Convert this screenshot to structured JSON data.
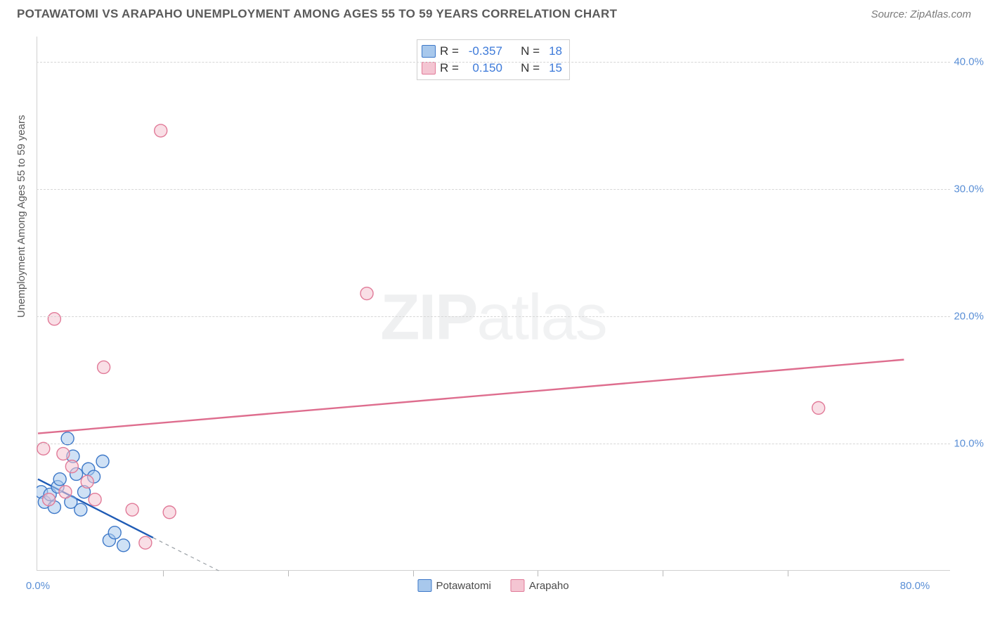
{
  "header": {
    "title": "POTAWATOMI VS ARAPAHO UNEMPLOYMENT AMONG AGES 55 TO 59 YEARS CORRELATION CHART",
    "source": "Source: ZipAtlas.com"
  },
  "chart": {
    "type": "scatter",
    "ylabel": "Unemployment Among Ages 55 to 59 years",
    "background_color": "#ffffff",
    "grid_color": "#d6d6d6",
    "axis_color": "#d0d0d0",
    "label_color": "#5a8fd6",
    "xlim": [
      0,
      80
    ],
    "ylim": [
      0,
      42
    ],
    "xticks": [
      0,
      80
    ],
    "xtick_labels": [
      "0.0%",
      "80.0%"
    ],
    "xtick_minor": [
      11.4,
      22.8,
      34.2,
      45.6,
      57.0,
      68.4
    ],
    "yticks": [
      10,
      20,
      30,
      40
    ],
    "ytick_labels": [
      "10.0%",
      "20.0%",
      "30.0%",
      "40.0%"
    ],
    "marker_radius": 9,
    "marker_stroke_width": 1.4,
    "line_width": 2.4,
    "dash_pattern": "5,5",
    "series": [
      {
        "name": "Potawatomi",
        "fill": "#a8c8ec",
        "stroke": "#3d78c8",
        "line_color": "#1f5bb5",
        "R": "-0.357",
        "N": "18",
        "points": [
          [
            0.3,
            6.2
          ],
          [
            0.6,
            5.4
          ],
          [
            1.1,
            6.0
          ],
          [
            1.5,
            5.0
          ],
          [
            1.8,
            6.6
          ],
          [
            2.0,
            7.2
          ],
          [
            2.7,
            10.4
          ],
          [
            3.2,
            9.0
          ],
          [
            3.5,
            7.6
          ],
          [
            3.9,
            4.8
          ],
          [
            4.2,
            6.2
          ],
          [
            4.6,
            8.0
          ],
          [
            5.1,
            7.4
          ],
          [
            5.9,
            8.6
          ],
          [
            6.5,
            2.4
          ],
          [
            7.8,
            2.0
          ],
          [
            7.0,
            3.0
          ],
          [
            3.0,
            5.4
          ]
        ],
        "trendline": {
          "x1": 0,
          "y1": 7.2,
          "x2": 10.5,
          "y2": 2.6,
          "dash_to_x": 16.5,
          "dash_to_y": 0
        }
      },
      {
        "name": "Arapaho",
        "fill": "#f4c5d2",
        "stroke": "#e17a98",
        "line_color": "#de6d8e",
        "R": "0.150",
        "N": "15",
        "points": [
          [
            0.5,
            9.6
          ],
          [
            1.5,
            19.8
          ],
          [
            2.3,
            9.2
          ],
          [
            2.5,
            6.2
          ],
          [
            3.1,
            8.2
          ],
          [
            4.5,
            7.0
          ],
          [
            5.2,
            5.6
          ],
          [
            6.0,
            16.0
          ],
          [
            8.6,
            4.8
          ],
          [
            9.8,
            2.2
          ],
          [
            11.2,
            34.6
          ],
          [
            12.0,
            4.6
          ],
          [
            30.0,
            21.8
          ],
          [
            71.2,
            12.8
          ],
          [
            1.0,
            5.6
          ]
        ],
        "trendline": {
          "x1": 0,
          "y1": 10.8,
          "x2": 79,
          "y2": 16.6
        }
      }
    ],
    "stat_box": {
      "border_color": "#cfcfcf",
      "R_label": "R =",
      "N_label": "N ="
    },
    "legend": [
      {
        "label": "Potawatomi",
        "fill": "#a8c8ec",
        "stroke": "#3d78c8"
      },
      {
        "label": "Arapaho",
        "fill": "#f4c5d2",
        "stroke": "#e17a98"
      }
    ],
    "watermark": {
      "zip": "ZIP",
      "atlas": "atlas"
    }
  }
}
